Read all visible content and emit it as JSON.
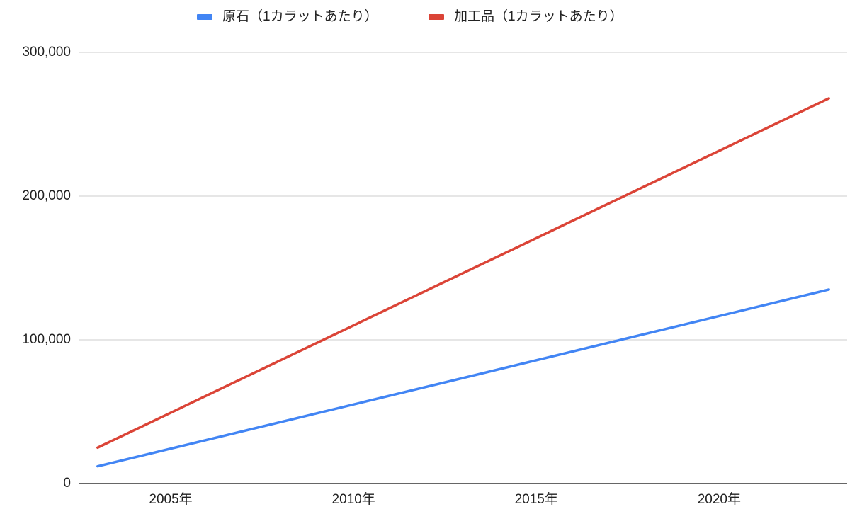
{
  "chart_data": {
    "type": "line",
    "x": [
      2003,
      2023
    ],
    "series": [
      {
        "name": "原石（1カラットあたり）",
        "color": "#4285f4",
        "values": [
          12000,
          135000
        ]
      },
      {
        "name": "加工品（1カラットあたり）",
        "color": "#db4437",
        "values": [
          25000,
          268000
        ]
      }
    ],
    "xlim": [
      2002.5,
      2023.5
    ],
    "xticks": [
      {
        "value": 2005,
        "label": "2005年"
      },
      {
        "value": 2010,
        "label": "2010年"
      },
      {
        "value": 2015,
        "label": "2015年"
      },
      {
        "value": 2020,
        "label": "2020年"
      }
    ],
    "ylim": [
      0,
      300000
    ],
    "yticks": [
      {
        "value": 0,
        "label": "0"
      },
      {
        "value": 100000,
        "label": "100,000"
      },
      {
        "value": 200000,
        "label": "200,000"
      },
      {
        "value": 300000,
        "label": "300,000"
      }
    ],
    "grid": true,
    "legend": "top"
  }
}
